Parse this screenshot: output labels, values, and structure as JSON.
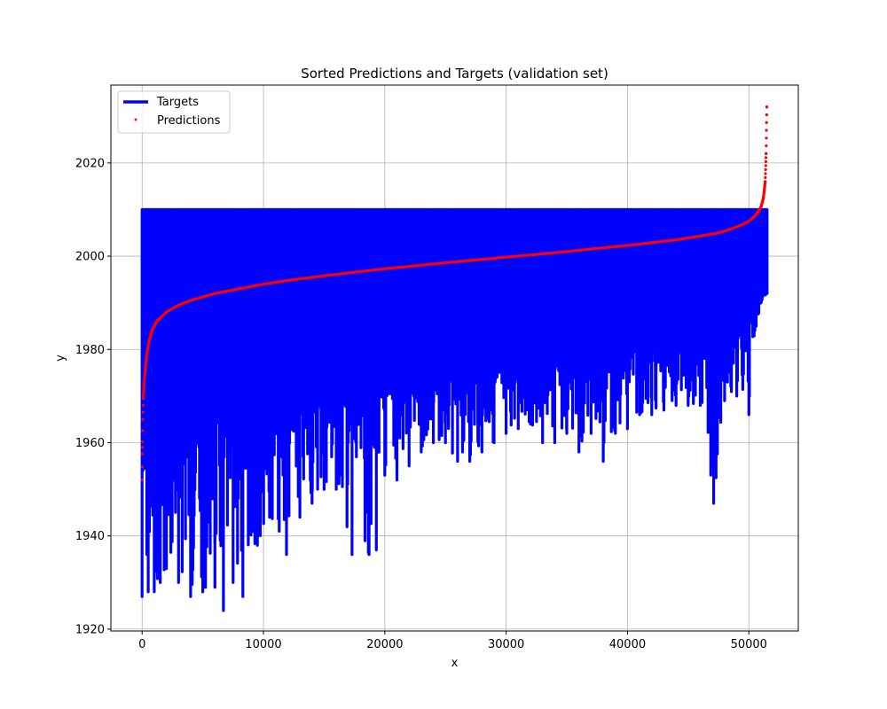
{
  "chart_data": {
    "type": "line",
    "title": "Sorted Predictions and Targets (validation set)",
    "xlabel": "x",
    "ylabel": "y",
    "xlim": [
      -2575,
      54075
    ],
    "ylim": [
      1919.6,
      2036.7
    ],
    "xticks": [
      0,
      10000,
      20000,
      30000,
      40000,
      50000
    ],
    "xtick_labels": [
      "0",
      "10000",
      "20000",
      "30000",
      "40000",
      "50000"
    ],
    "yticks": [
      1920,
      1940,
      1960,
      1980,
      2000,
      2020
    ],
    "ytick_labels": [
      "1920",
      "1940",
      "1960",
      "1980",
      "2000",
      "2020"
    ],
    "grid": true,
    "legend_position": "top-left",
    "colors": {
      "targets": "#0000ff",
      "predictions": "#ff0000",
      "grid": "#b0b0b0"
    },
    "series": [
      {
        "name": "Targets",
        "style": "line",
        "color": "#0000ff",
        "x_range": [
          0,
          51500
        ],
        "max_y": 2010,
        "min_envelope": [
          [
            0,
            1927
          ],
          [
            500,
            1928
          ],
          [
            1000,
            1928
          ],
          [
            1500,
            1930
          ],
          [
            2000,
            1933
          ],
          [
            3000,
            1930
          ],
          [
            4000,
            1927
          ],
          [
            5000,
            1928
          ],
          [
            6000,
            1929
          ],
          [
            6700,
            1924
          ],
          [
            7500,
            1930
          ],
          [
            8300,
            1927
          ],
          [
            9500,
            1938
          ],
          [
            10500,
            1944
          ],
          [
            11300,
            1941
          ],
          [
            11900,
            1936
          ],
          [
            13000,
            1944
          ],
          [
            14000,
            1947
          ],
          [
            15000,
            1950
          ],
          [
            16000,
            1950
          ],
          [
            17300,
            1936
          ],
          [
            18700,
            1936
          ],
          [
            19300,
            1937
          ],
          [
            20000,
            1953
          ],
          [
            21000,
            1952
          ],
          [
            22000,
            1955
          ],
          [
            23000,
            1958
          ],
          [
            24000,
            1960
          ],
          [
            25000,
            1960
          ],
          [
            26000,
            1956
          ],
          [
            27000,
            1956
          ],
          [
            28000,
            1958
          ],
          [
            29000,
            1960
          ],
          [
            30000,
            1962
          ],
          [
            31000,
            1963
          ],
          [
            32000,
            1964
          ],
          [
            33000,
            1960
          ],
          [
            34000,
            1960
          ],
          [
            35000,
            1962
          ],
          [
            36000,
            1958
          ],
          [
            37000,
            1962
          ],
          [
            38000,
            1956
          ],
          [
            39000,
            1962
          ],
          [
            40000,
            1963
          ],
          [
            41000,
            1966
          ],
          [
            42000,
            1966
          ],
          [
            43000,
            1967
          ],
          [
            44000,
            1968
          ],
          [
            45000,
            1968
          ],
          [
            46000,
            1968
          ],
          [
            47100,
            1947
          ],
          [
            48000,
            1969
          ],
          [
            49000,
            1970
          ],
          [
            50000,
            1966
          ],
          [
            50600,
            1985
          ],
          [
            51000,
            1990
          ],
          [
            51500,
            1992
          ]
        ],
        "dense_band_floor": [
          [
            0,
            1965
          ],
          [
            1000,
            1955
          ],
          [
            2500,
            1962
          ],
          [
            5000,
            1964
          ],
          [
            10000,
            1968
          ],
          [
            15000,
            1970
          ],
          [
            20000,
            1972
          ],
          [
            25000,
            1974
          ],
          [
            30000,
            1976
          ],
          [
            35000,
            1978
          ],
          [
            40000,
            1980
          ],
          [
            45000,
            1982
          ],
          [
            50000,
            1986
          ],
          [
            51500,
            1993
          ]
        ]
      },
      {
        "name": "Predictions",
        "style": "scatter",
        "color": "#ff0000",
        "points": [
          [
            0,
            1952
          ],
          [
            30,
            1959
          ],
          [
            60,
            1965
          ],
          [
            100,
            1970
          ],
          [
            200,
            1974
          ],
          [
            350,
            1978
          ],
          [
            500,
            1981
          ],
          [
            800,
            1984
          ],
          [
            1200,
            1986
          ],
          [
            2000,
            1988
          ],
          [
            3000,
            1989.5
          ],
          [
            4000,
            1990.5
          ],
          [
            6000,
            1992
          ],
          [
            8000,
            1993
          ],
          [
            10000,
            1994
          ],
          [
            12000,
            1994.8
          ],
          [
            15000,
            1995.8
          ],
          [
            18000,
            1996.7
          ],
          [
            20000,
            1997.3
          ],
          [
            22000,
            1997.8
          ],
          [
            25000,
            1998.6
          ],
          [
            28000,
            1999.3
          ],
          [
            30000,
            1999.8
          ],
          [
            33000,
            2000.5
          ],
          [
            35000,
            2001
          ],
          [
            38000,
            2001.8
          ],
          [
            40000,
            2002.3
          ],
          [
            42000,
            2002.9
          ],
          [
            44000,
            2003.5
          ],
          [
            46000,
            2004.3
          ],
          [
            47500,
            2005
          ],
          [
            48500,
            2005.8
          ],
          [
            49500,
            2006.8
          ],
          [
            50000,
            2007.5
          ],
          [
            50500,
            2008.6
          ],
          [
            51000,
            2010.5
          ],
          [
            51200,
            2012.5
          ],
          [
            51350,
            2016
          ],
          [
            51420,
            2022
          ],
          [
            51480,
            2032
          ]
        ]
      }
    ]
  }
}
